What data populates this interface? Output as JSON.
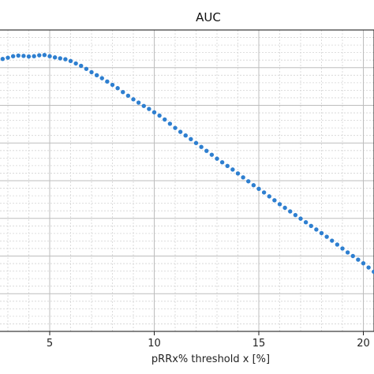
{
  "chart_data": {
    "type": "scatter",
    "title": "AUC",
    "xlabel": "pRRx% threshold x [%]",
    "ylabel": "",
    "xlim": [
      2.5,
      20.5
    ],
    "xticks": [
      5,
      10,
      15,
      20
    ],
    "xtick_labels": [
      "5",
      "10",
      "15",
      "20"
    ],
    "ylim": [
      0,
      1
    ],
    "grid": true,
    "minor_grid": true,
    "marker_color": "#2e7fd0",
    "series": [
      {
        "x": [
          2.5,
          2.75,
          3.0,
          3.25,
          3.5,
          3.75,
          4.0,
          4.25,
          4.5,
          4.75,
          5.0,
          5.25,
          5.5,
          5.75,
          6.0,
          6.25,
          6.5,
          6.75,
          7.0,
          7.25,
          7.5,
          7.75,
          8.0,
          8.25,
          8.5,
          8.75,
          9.0,
          9.25,
          9.5,
          9.75,
          10.0,
          10.25,
          10.5,
          10.75,
          11.0,
          11.25,
          11.5,
          11.75,
          12.0,
          12.25,
          12.5,
          12.75,
          13.0,
          13.25,
          13.5,
          13.75,
          14.0,
          14.25,
          14.5,
          14.75,
          15.0,
          15.25,
          15.5,
          15.75,
          16.0,
          16.25,
          16.5,
          16.75,
          17.0,
          17.25,
          17.5,
          17.75,
          18.0,
          18.25,
          18.5,
          18.75,
          19.0,
          19.25,
          19.5,
          19.75,
          20.0,
          20.25,
          20.5
        ],
        "y": [
          0.9,
          0.904,
          0.908,
          0.913,
          0.915,
          0.914,
          0.912,
          0.913,
          0.916,
          0.917,
          0.913,
          0.909,
          0.906,
          0.903,
          0.897,
          0.889,
          0.881,
          0.871,
          0.86,
          0.85,
          0.84,
          0.829,
          0.818,
          0.807,
          0.794,
          0.782,
          0.77,
          0.759,
          0.748,
          0.738,
          0.727,
          0.716,
          0.703,
          0.689,
          0.675,
          0.662,
          0.65,
          0.638,
          0.625,
          0.612,
          0.599,
          0.586,
          0.573,
          0.561,
          0.549,
          0.537,
          0.524,
          0.511,
          0.498,
          0.485,
          0.473,
          0.461,
          0.448,
          0.435,
          0.422,
          0.41,
          0.398,
          0.386,
          0.374,
          0.362,
          0.35,
          0.338,
          0.326,
          0.314,
          0.301,
          0.288,
          0.275,
          0.262,
          0.25,
          0.238,
          0.226,
          0.212,
          0.198
        ]
      }
    ]
  }
}
